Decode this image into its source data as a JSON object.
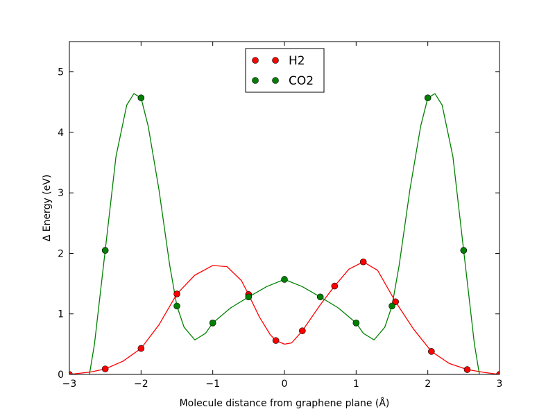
{
  "chart_data": {
    "type": "scatter",
    "xlabel": "Molecule distance from graphene plane (Å)",
    "ylabel": "Δ Energy (eV)",
    "xlim": [
      -3,
      3
    ],
    "ylim": [
      0,
      5.5
    ],
    "xticks": [
      -3,
      -2,
      -1,
      0,
      1,
      2,
      3
    ],
    "xtick_labels": [
      "−3",
      "−2",
      "−1",
      "0",
      "1",
      "2",
      "3"
    ],
    "yticks": [
      0,
      1,
      2,
      3,
      4,
      5
    ],
    "ytick_labels": [
      "0",
      "1",
      "2",
      "3",
      "4",
      "5"
    ],
    "grid": false,
    "legend_position": "top-center",
    "series": [
      {
        "name": "H2",
        "color": "#ff0000",
        "marker": "circle",
        "points": [
          [
            -3.0,
            0.0
          ],
          [
            -2.5,
            0.09
          ],
          [
            -2.0,
            0.43
          ],
          [
            -1.5,
            1.33
          ],
          [
            -0.5,
            1.32
          ],
          [
            -0.12,
            0.56
          ],
          [
            0.25,
            0.72
          ],
          [
            0.7,
            1.46
          ],
          [
            1.1,
            1.86
          ],
          [
            1.55,
            1.2
          ],
          [
            2.05,
            0.38
          ],
          [
            2.55,
            0.08
          ],
          [
            3.0,
            0.0
          ]
        ],
        "curve": [
          [
            -3.0,
            0.0
          ],
          [
            -2.7,
            0.04
          ],
          [
            -2.5,
            0.09
          ],
          [
            -2.25,
            0.22
          ],
          [
            -2.0,
            0.43
          ],
          [
            -1.75,
            0.82
          ],
          [
            -1.5,
            1.33
          ],
          [
            -1.25,
            1.64
          ],
          [
            -1.0,
            1.8
          ],
          [
            -0.8,
            1.78
          ],
          [
            -0.6,
            1.55
          ],
          [
            -0.5,
            1.32
          ],
          [
            -0.35,
            0.95
          ],
          [
            -0.2,
            0.66
          ],
          [
            -0.12,
            0.56
          ],
          [
            0.0,
            0.5
          ],
          [
            0.1,
            0.52
          ],
          [
            0.25,
            0.72
          ],
          [
            0.5,
            1.15
          ],
          [
            0.7,
            1.46
          ],
          [
            0.9,
            1.74
          ],
          [
            1.1,
            1.86
          ],
          [
            1.3,
            1.72
          ],
          [
            1.55,
            1.2
          ],
          [
            1.8,
            0.75
          ],
          [
            2.05,
            0.38
          ],
          [
            2.3,
            0.18
          ],
          [
            2.55,
            0.08
          ],
          [
            2.8,
            0.03
          ],
          [
            3.0,
            0.0
          ]
        ]
      },
      {
        "name": "CO2",
        "color": "#008000",
        "marker": "circle",
        "points": [
          [
            -2.5,
            2.05
          ],
          [
            -2.0,
            4.57
          ],
          [
            -1.5,
            1.13
          ],
          [
            -1.0,
            0.85
          ],
          [
            -0.5,
            1.28
          ],
          [
            0.0,
            1.57
          ],
          [
            0.5,
            1.28
          ],
          [
            1.0,
            0.85
          ],
          [
            1.5,
            1.13
          ],
          [
            2.0,
            4.57
          ],
          [
            2.5,
            2.05
          ]
        ],
        "curve": [
          [
            -2.72,
            0.0
          ],
          [
            -2.65,
            0.5
          ],
          [
            -2.5,
            2.05
          ],
          [
            -2.35,
            3.6
          ],
          [
            -2.2,
            4.45
          ],
          [
            -2.1,
            4.64
          ],
          [
            -2.0,
            4.57
          ],
          [
            -1.9,
            4.1
          ],
          [
            -1.75,
            3.05
          ],
          [
            -1.6,
            1.8
          ],
          [
            -1.5,
            1.13
          ],
          [
            -1.4,
            0.78
          ],
          [
            -1.25,
            0.57
          ],
          [
            -1.1,
            0.68
          ],
          [
            -1.0,
            0.85
          ],
          [
            -0.75,
            1.1
          ],
          [
            -0.5,
            1.28
          ],
          [
            -0.25,
            1.45
          ],
          [
            0.0,
            1.57
          ],
          [
            0.25,
            1.45
          ],
          [
            0.5,
            1.28
          ],
          [
            0.75,
            1.1
          ],
          [
            1.0,
            0.85
          ],
          [
            1.1,
            0.68
          ],
          [
            1.25,
            0.57
          ],
          [
            1.4,
            0.78
          ],
          [
            1.5,
            1.13
          ],
          [
            1.6,
            1.8
          ],
          [
            1.75,
            3.05
          ],
          [
            1.9,
            4.1
          ],
          [
            2.0,
            4.57
          ],
          [
            2.1,
            4.64
          ],
          [
            2.2,
            4.45
          ],
          [
            2.35,
            3.6
          ],
          [
            2.5,
            2.05
          ],
          [
            2.65,
            0.5
          ],
          [
            2.72,
            0.0
          ]
        ]
      }
    ]
  }
}
